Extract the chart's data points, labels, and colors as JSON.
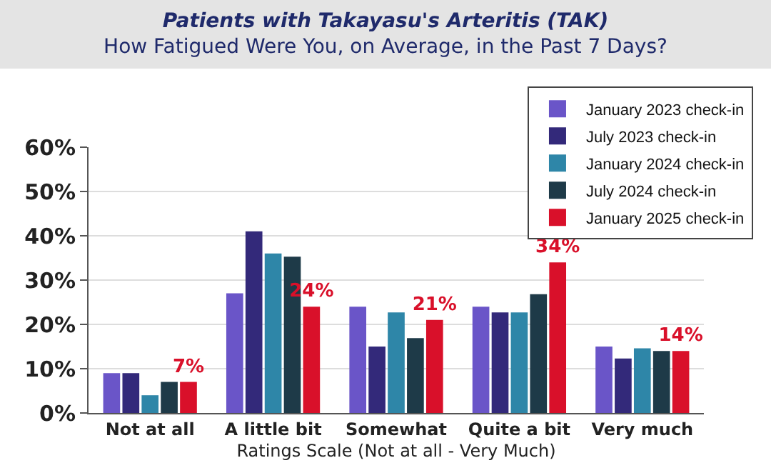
{
  "chart_data": {
    "type": "bar",
    "title": "Patients with Takayasu's Arteritis (TAK)",
    "subtitle": "How Fatigued Were You, on Average, in the Past 7 Days?",
    "xlabel": "Ratings Scale (Not at all - Very Much)",
    "categories": [
      "Not at all",
      "A little bit",
      "Somewhat",
      "Quite a bit",
      "Very much"
    ],
    "series": [
      {
        "name": "January 2023 check-in",
        "color": "#6a55c8",
        "values": [
          9,
          27,
          24,
          24,
          15
        ]
      },
      {
        "name": "July 2023 check-in",
        "color": "#33297a",
        "values": [
          9,
          41,
          15,
          22.7,
          12.3
        ]
      },
      {
        "name": "January 2024 check-in",
        "color": "#2e86a8",
        "values": [
          4,
          36,
          22.7,
          22.7,
          14.6
        ]
      },
      {
        "name": "July 2024 check-in",
        "color": "#1e3a48",
        "values": [
          7,
          35.3,
          16.9,
          26.8,
          14
        ]
      },
      {
        "name": "January 2025 check-in",
        "color": "#d9102a",
        "values": [
          7,
          24,
          21,
          34,
          14
        ],
        "value_labels": [
          "7%",
          "24%",
          "21%",
          "34%",
          "14%"
        ]
      }
    ],
    "ylim": [
      0,
      60
    ],
    "yticks": [
      {
        "value": 0,
        "label": "0%"
      },
      {
        "value": 10,
        "label": "10%"
      },
      {
        "value": 20,
        "label": "20%"
      },
      {
        "value": 30,
        "label": "30%"
      },
      {
        "value": 40,
        "label": "40%"
      },
      {
        "value": 50,
        "label": "50%"
      },
      {
        "value": 60,
        "label": "60%"
      }
    ],
    "grid": "y",
    "legend": "top right"
  }
}
